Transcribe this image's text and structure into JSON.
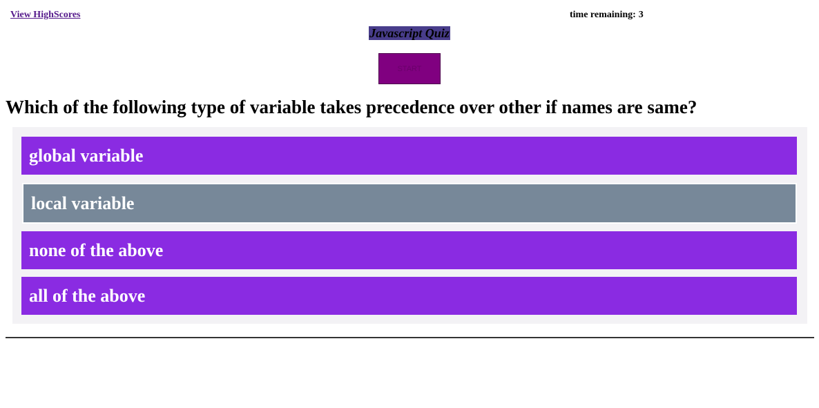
{
  "header": {
    "highscores_link": "View HighScores",
    "timer_label": "time remaining:",
    "timer_value": "3"
  },
  "quiz": {
    "title": "Javascript Quiz",
    "start_label": "START",
    "question": "Which of the following type of variable takes precedence over other if names are same?",
    "answers": [
      "global variable",
      "local variable",
      "none of the above",
      "all of the above"
    ]
  },
  "colors": {
    "answer_bg": "#8a2be2",
    "answer_hover_bg": "#778899",
    "title_highlight": "#483d8b",
    "start_button": "#800080",
    "link": "#551a8b"
  }
}
